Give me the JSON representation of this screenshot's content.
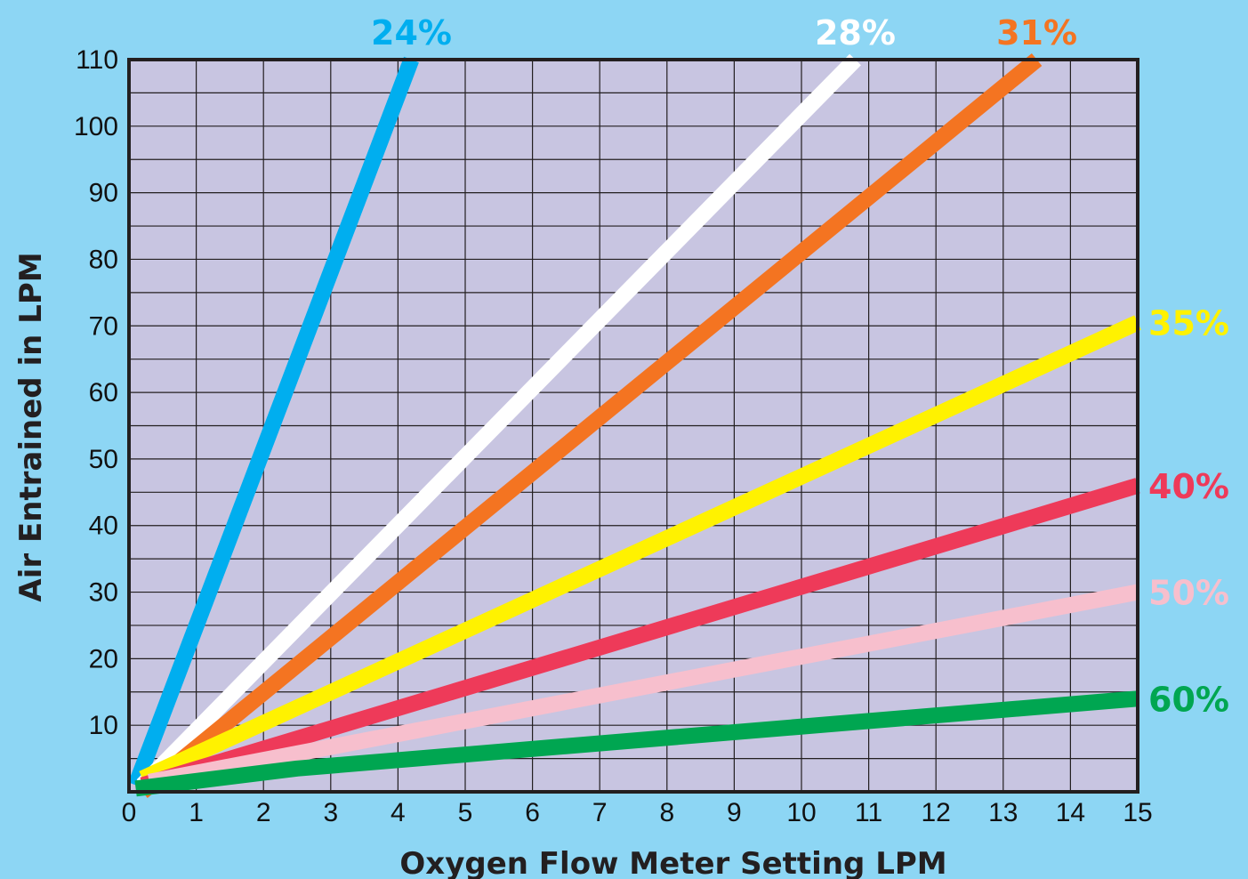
{
  "chart_data": {
    "type": "line",
    "title": "",
    "xlabel": "Oxygen Flow Meter Setting LPM",
    "ylabel": "Air Entrained in LPM",
    "xlim": [
      0,
      15
    ],
    "ylim": [
      0,
      110
    ],
    "x_ticks": [
      "0",
      "1",
      "2",
      "3",
      "4",
      "5",
      "6",
      "7",
      "8",
      "9",
      "10",
      "11",
      "12",
      "13",
      "14",
      "15"
    ],
    "y_ticks": [
      "10",
      "20",
      "30",
      "40",
      "50",
      "60",
      "70",
      "80",
      "90",
      "100",
      "110"
    ],
    "grid": true,
    "plot_background": "#c8c5e1",
    "series": [
      {
        "name": "24%",
        "color": "#00aeef",
        "points": [
          [
            0.1,
            1
          ],
          [
            4.2,
            110
          ]
        ]
      },
      {
        "name": "28%",
        "color": "#ffffff",
        "points": [
          [
            0.2,
            1
          ],
          [
            10.8,
            110
          ]
        ]
      },
      {
        "name": "31%",
        "color": "#f47421",
        "points": [
          [
            0.2,
            0
          ],
          [
            13.5,
            110
          ]
        ]
      },
      {
        "name": "35%",
        "color": "#fff200",
        "points": [
          [
            0.2,
            2
          ],
          [
            15,
            70.5
          ]
        ]
      },
      {
        "name": "40%",
        "color": "#ee3a59",
        "points": [
          [
            0.2,
            1
          ],
          [
            15,
            46
          ]
        ]
      },
      {
        "name": "50%",
        "color": "#f7bfcd",
        "points": [
          [
            0.3,
            1.5
          ],
          [
            15,
            30
          ]
        ]
      },
      {
        "name": "60%",
        "color": "#00a651",
        "points": [
          [
            0.1,
            0.5
          ],
          [
            2.5,
            3.5
          ],
          [
            15,
            14
          ]
        ]
      }
    ]
  }
}
